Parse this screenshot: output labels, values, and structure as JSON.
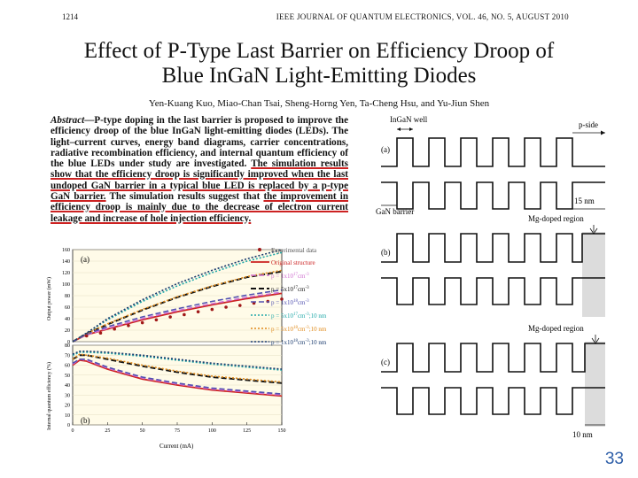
{
  "header": {
    "page": "1214",
    "journal": "IEEE JOURNAL OF QUANTUM ELECTRONICS, VOL. 46, NO. 5, AUGUST 2010"
  },
  "title_line1": "Effect of P-Type Last Barrier on Efficiency Droop of",
  "title_line2": "Blue InGaN Light-Emitting Diodes",
  "authors": "Yen-Kuang Kuo, Miao-Chan Tsai, Sheng-Horng Yen, Ta-Cheng Hsu, and Yu-Jiun Shen",
  "abstract": {
    "lead": "Abstract",
    "part1": "—P-type doping in the last barrier is proposed to improve the efficiency droop of the blue InGaN light-emitting diodes (LEDs). The light–current curves, energy band diagrams, carrier concentrations, radiative recombination efficiency, and internal quantum efficiency of the blue LEDs under study are investigated. ",
    "part2": "The simulation results show that the efficiency droop is significantly improved when the last undoped GaN barrier in a typical blue LED is replaced by a p-type GaN barrier.",
    "part3": " The simulation results suggest that ",
    "part4": "the improvement in efficiency droop is mainly due to the decrease of electron current leakage and increase of hole injection efficiency."
  },
  "page_number": "33",
  "chart_data": [
    {
      "type": "line",
      "panel": "(a)",
      "xlabel": "",
      "ylabel": "Output power (mW)",
      "xlim": [
        0,
        150
      ],
      "ylim": [
        0,
        160
      ],
      "yticks": [
        0,
        20,
        40,
        60,
        80,
        100,
        120,
        140,
        160
      ],
      "legend": {
        "experimental": "Experimental data",
        "original": "Original structure",
        "p1e17": "p = 1x10",
        "p5e17": "p = 5x10",
        "p1e18": "p = 1x10",
        "p5e17_10": "p = 5x10",
        "p5e18_10": "p = 5x10",
        "p1e18_10": "p = 1x10",
        "exp17": "17",
        "exp18": "18",
        "unit": "cm",
        "unit_exp": "-3",
        "suffix_10nm": ";10 nm"
      },
      "series": [
        {
          "name": "Experimental data",
          "color": "#a01818",
          "x": [
            10,
            20,
            30,
            40,
            50,
            60,
            70,
            80,
            90,
            100,
            110,
            120,
            130,
            140,
            150
          ],
          "values": [
            10,
            15,
            22,
            28,
            33,
            38,
            43,
            47,
            52,
            56,
            60,
            63,
            67,
            70,
            74
          ]
        },
        {
          "name": "Original structure",
          "color": "#cc2222",
          "x": [
            0,
            10,
            25,
            50,
            75,
            100,
            125,
            150
          ],
          "values": [
            0,
            12,
            22,
            38,
            52,
            64,
            75,
            84
          ]
        },
        {
          "name": "p = 1x10^17 cm^-3",
          "color": "#d070d0",
          "x": [
            0,
            10,
            25,
            50,
            75,
            100,
            125,
            150
          ],
          "values": [
            0,
            12,
            23,
            40,
            54,
            66,
            77,
            86
          ]
        },
        {
          "name": "p = 5x10^17 cm^-3",
          "color": "#111111",
          "x": [
            0,
            10,
            25,
            50,
            75,
            100,
            125,
            150
          ],
          "values": [
            0,
            14,
            30,
            55,
            77,
            96,
            112,
            122
          ]
        },
        {
          "name": "p = 1x10^18 cm^-3",
          "color": "#5050b0",
          "x": [
            0,
            10,
            25,
            50,
            75,
            100,
            125,
            150
          ],
          "values": [
            0,
            13,
            26,
            43,
            57,
            70,
            81,
            90
          ]
        },
        {
          "name": "p = 5x10^17 cm^-3;10 nm",
          "color": "#20a8a8",
          "x": [
            0,
            10,
            25,
            50,
            75,
            100,
            125,
            150
          ],
          "values": [
            0,
            15,
            38,
            70,
            97,
            120,
            140,
            155
          ]
        },
        {
          "name": "p = 5x10^18 cm^-3;10 nm",
          "color": "#e08a1a",
          "x": [
            0,
            10,
            25,
            50,
            75,
            100,
            125,
            150
          ],
          "values": [
            0,
            14,
            31,
            56,
            78,
            97,
            113,
            124
          ]
        },
        {
          "name": "p = 1x10^18 cm^-3;10 nm",
          "color": "#1a3b6e",
          "x": [
            0,
            10,
            25,
            50,
            75,
            100,
            125,
            150
          ],
          "values": [
            0,
            15,
            40,
            73,
            101,
            124,
            144,
            160
          ]
        }
      ]
    },
    {
      "type": "line",
      "panel": "(b)",
      "xlabel": "Current (mA)",
      "ylabel": "Internal quantum efficiency (%)",
      "xlim": [
        0,
        150
      ],
      "ylim": [
        0,
        80
      ],
      "xticks": [
        0,
        25,
        50,
        75,
        100,
        125,
        150
      ],
      "yticks": [
        0,
        10,
        20,
        30,
        40,
        50,
        60,
        70,
        80
      ],
      "series": [
        {
          "name": "Original structure",
          "color": "#cc2222",
          "x": [
            0,
            5,
            10,
            25,
            50,
            75,
            100,
            125,
            150
          ],
          "values": [
            60,
            65,
            64,
            56,
            46,
            40,
            35,
            32,
            29
          ]
        },
        {
          "name": "p = 1x10^17 cm^-3",
          "color": "#d070d0",
          "x": [
            0,
            5,
            10,
            25,
            50,
            75,
            100,
            125,
            150
          ],
          "values": [
            61,
            66,
            65,
            57,
            47,
            41,
            36,
            33,
            30
          ]
        },
        {
          "name": "p = 5x10^17 cm^-3",
          "color": "#111111",
          "x": [
            0,
            5,
            10,
            25,
            50,
            75,
            100,
            125,
            150
          ],
          "values": [
            66,
            70,
            70,
            66,
            59,
            53,
            48,
            45,
            42
          ]
        },
        {
          "name": "p = 1x10^18 cm^-3",
          "color": "#5050b0",
          "x": [
            0,
            5,
            10,
            25,
            50,
            75,
            100,
            125,
            150
          ],
          "values": [
            62,
            66,
            66,
            58,
            48,
            42,
            37,
            34,
            31
          ]
        },
        {
          "name": "p = 5x10^17 cm^-3;10 nm",
          "color": "#20a8a8",
          "x": [
            0,
            5,
            10,
            25,
            50,
            75,
            100,
            125,
            150
          ],
          "values": [
            70,
            73,
            73,
            72,
            69,
            65,
            61,
            58,
            55
          ]
        },
        {
          "name": "p = 5x10^18 cm^-3;10 nm",
          "color": "#e08a1a",
          "x": [
            0,
            5,
            10,
            25,
            50,
            75,
            100,
            125,
            150
          ],
          "values": [
            66,
            71,
            70,
            67,
            60,
            54,
            49,
            46,
            43
          ]
        },
        {
          "name": "p = 1x10^18 cm^-3;10 nm",
          "color": "#1a3b6e",
          "x": [
            0,
            5,
            10,
            25,
            50,
            75,
            100,
            125,
            150
          ],
          "values": [
            71,
            74,
            74,
            73,
            70,
            66,
            62,
            59,
            56
          ]
        }
      ]
    }
  ],
  "band_diagram": {
    "ingan_well": "InGaN well",
    "p_side": "p-side",
    "gan_barrier": "GaN barrier",
    "mg_doped": "Mg-doped region",
    "dim_15": "15 nm",
    "dim_10": "10 nm",
    "panel_a": "(a)",
    "panel_b": "(b)",
    "panel_c": "(c)"
  }
}
